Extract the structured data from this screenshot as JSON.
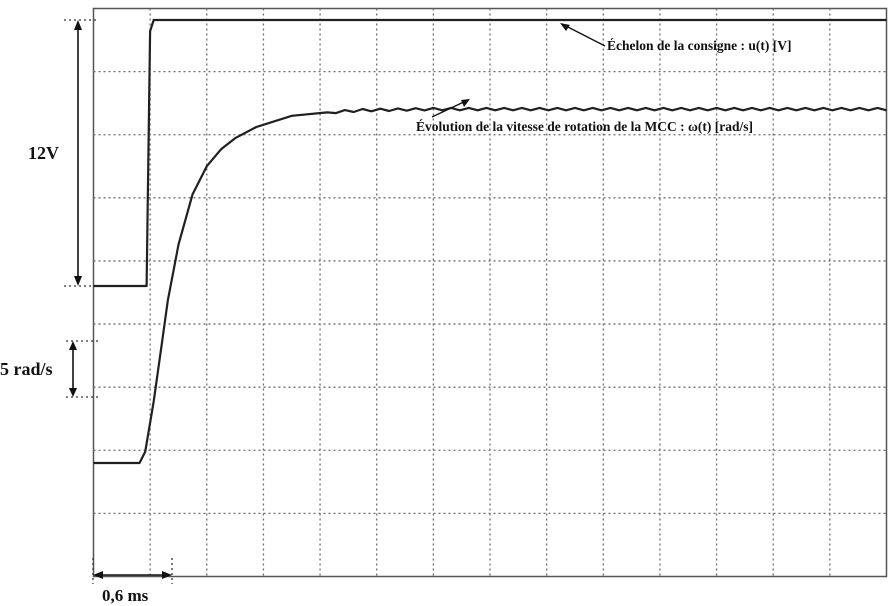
{
  "chart_data": {
    "type": "line",
    "title": "",
    "xlabel": "",
    "ylabel": "",
    "grid": true,
    "grid_divisions": {
      "x": 14,
      "y": 9
    },
    "xlim_ms": [
      -0.8,
      10.4
    ],
    "series": [
      {
        "name": "Échelon de la consigne : u(t) [V]",
        "unit": "V",
        "x": [
          -0.8,
          -0.05,
          0.0,
          0.05,
          0.1,
          10.4
        ],
        "y": [
          0,
          0,
          11.5,
          12,
          12,
          12
        ]
      },
      {
        "name": "Évolution de la vitesse de rotation de la MCC : ω(t) [rad/s]",
        "unit": "rad/s",
        "x": [
          -0.8,
          -0.15,
          -0.07,
          0.05,
          0.15,
          0.25,
          0.4,
          0.6,
          0.8,
          1.0,
          1.2,
          1.5,
          2.0,
          2.5,
          3.0,
          4.0,
          5.0,
          6.0,
          7.0,
          8.0,
          9.0,
          10.4
        ],
        "y": [
          0,
          0,
          1.0,
          5.5,
          10.0,
          14.5,
          19.5,
          24.0,
          26.5,
          28.0,
          29.0,
          30.0,
          31.0,
          31.3,
          31.5,
          31.6,
          31.6,
          31.6,
          31.6,
          31.6,
          31.6,
          31.6
        ]
      }
    ],
    "annotations": {
      "voltage_step": "12V",
      "speed_scale": "5 rad/s",
      "time_scale": "0,6 ms",
      "consigne_label": "Échelon de la consigne : u(t) [V]",
      "speed_label": "Évolution de la vitesse de rotation de la MCC : ω(t) [rad/s]"
    }
  }
}
